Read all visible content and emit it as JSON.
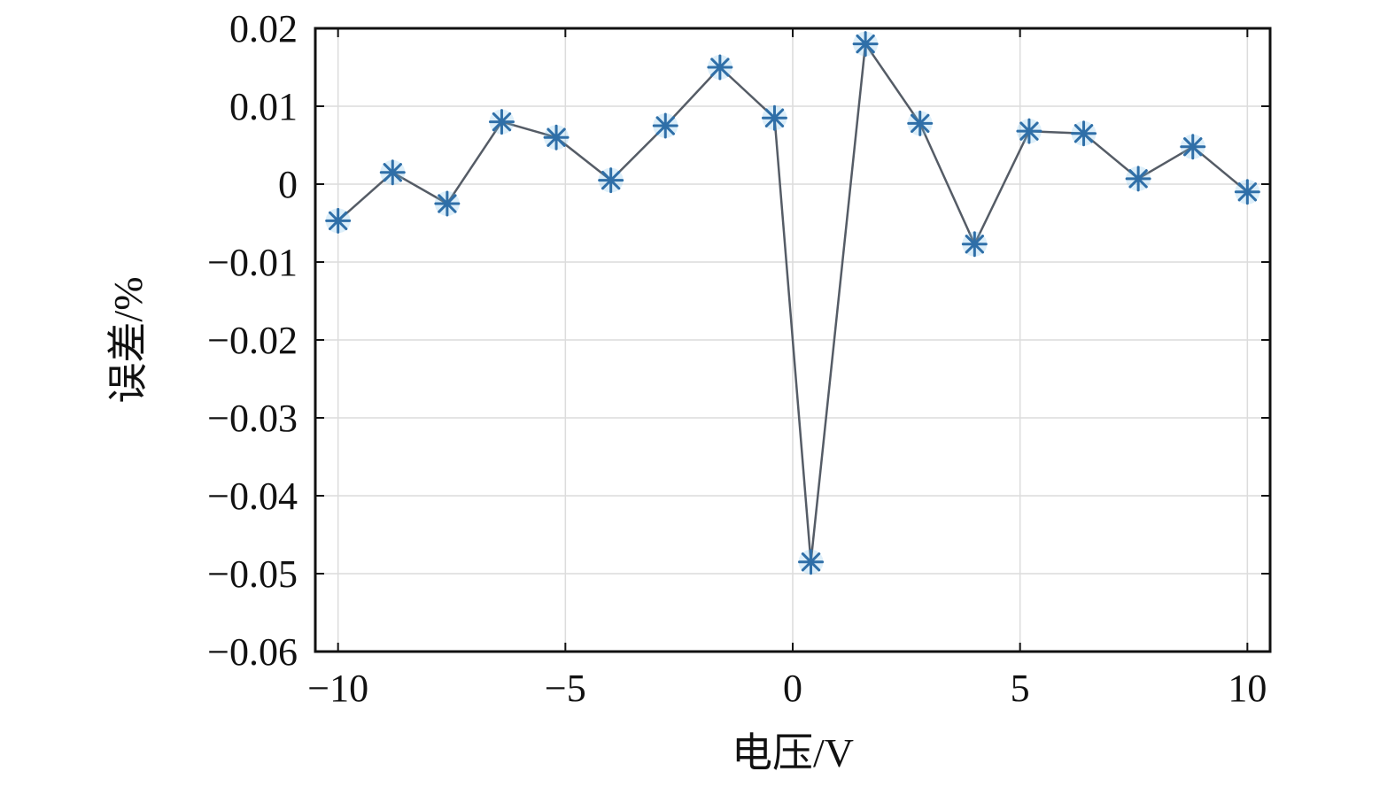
{
  "chart_data": {
    "type": "line",
    "title": "",
    "xlabel": "电压/V",
    "ylabel": "误差/%",
    "xlim": [
      -10.5,
      10.5
    ],
    "ylim": [
      -0.06,
      0.02
    ],
    "x_ticks": [
      -10,
      -5,
      0,
      5,
      10
    ],
    "x_tick_labels": [
      "−10",
      "−5",
      "0",
      "5",
      "10"
    ],
    "y_ticks": [
      0.02,
      0.01,
      0,
      -0.01,
      -0.02,
      -0.03,
      -0.04,
      -0.05,
      -0.06
    ],
    "y_tick_labels": [
      "0.02",
      "0.01",
      "0",
      "−0.01",
      "−0.02",
      "−0.03",
      "−0.04",
      "−0.05",
      "−0.06"
    ],
    "grid": true,
    "marker": "asterisk",
    "colors": {
      "line": "#555c66",
      "marker": "#2f6fa8",
      "grid": "#dcdcdc",
      "axes": "#111111"
    },
    "series": [
      {
        "x": [
          -10.0,
          -8.8,
          -7.6,
          -6.4,
          -5.2,
          -4.0,
          -2.8,
          -1.6,
          -0.4,
          0.4,
          1.6,
          2.8,
          4.0,
          5.2,
          6.4,
          7.6,
          8.8,
          10.0
        ],
        "y": [
          -0.0047,
          0.0015,
          -0.0025,
          0.008,
          0.006,
          0.0005,
          0.0075,
          0.015,
          0.0085,
          -0.0485,
          0.018,
          0.0078,
          -0.0077,
          0.0068,
          0.0065,
          0.0007,
          0.0048,
          -0.001
        ]
      }
    ]
  }
}
